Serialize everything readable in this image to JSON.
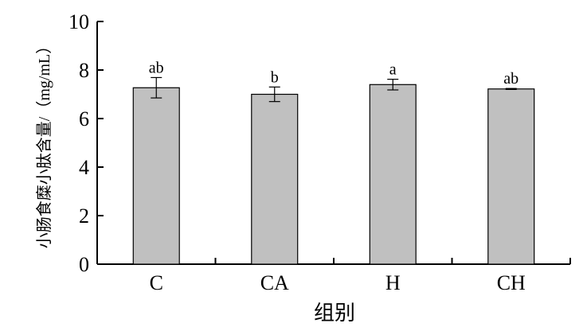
{
  "chart_data": {
    "type": "bar",
    "categories": [
      "C",
      "CA",
      "H",
      "CH"
    ],
    "values": [
      7.27,
      7.0,
      7.4,
      7.22
    ],
    "errors": [
      0.42,
      0.3,
      0.22,
      0.02
    ],
    "significance_labels": [
      "ab",
      "b",
      "a",
      "ab"
    ],
    "xlabel": "组别",
    "ylabel": "小肠食糜小肽含量/（mg/mL）",
    "ylim": [
      0,
      10
    ],
    "yticks": [
      "0",
      "2",
      "4",
      "6",
      "8",
      "10"
    ],
    "grid": false,
    "legend": "none",
    "bar_color": "#c0c0c0",
    "bar_edge_color": "#000000"
  }
}
